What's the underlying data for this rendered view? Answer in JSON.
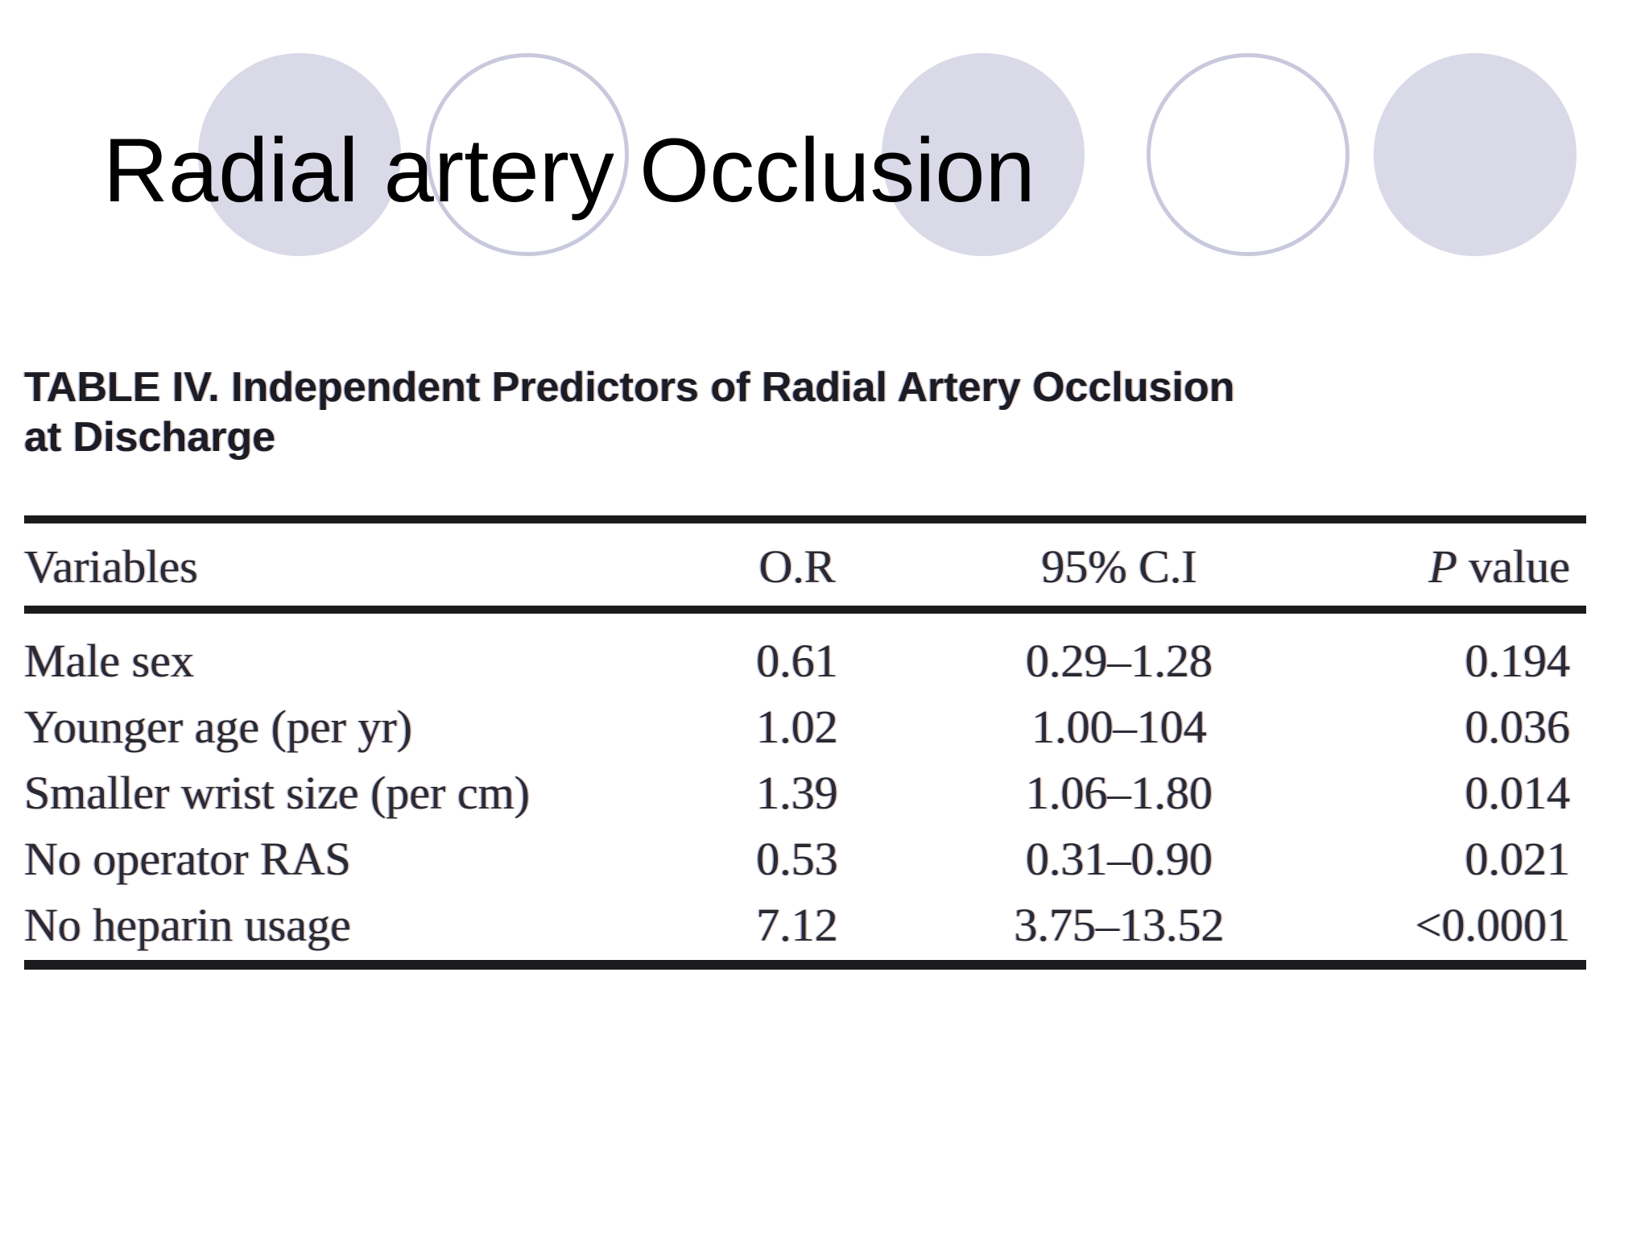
{
  "slide": {
    "title": "Radial artery Occlusion",
    "decor_circles": [
      "filled",
      "outlined",
      "filled",
      "outlined",
      "filled"
    ],
    "circle_lefts": [
      246,
      529,
      1095,
      1424,
      1706
    ],
    "colors": {
      "circle_fill": "#d9d9e8",
      "circle_stroke": "#c9c9dd",
      "ink": "#2a2a33",
      "ink_dark": "#1c1c24",
      "rule": "#1b1b1e"
    }
  },
  "table": {
    "caption_line1": "TABLE IV. Independent Predictors of Radial Artery Occlusion",
    "caption_line2": "at Discharge",
    "header": {
      "variables": "Variables",
      "or": "O.R",
      "ci": "95% C.I",
      "p_italic": "P",
      "p_rest": " value"
    },
    "rows": [
      {
        "variable": "Male sex",
        "or": "0.61",
        "ci": "0.29–1.28",
        "p": "0.194"
      },
      {
        "variable": "Younger age (per yr)",
        "or": "1.02",
        "ci": "1.00–104",
        "p": "0.036"
      },
      {
        "variable": "Smaller wrist size (per cm)",
        "or": "1.39",
        "ci": "1.06–1.80",
        "p": "0.014"
      },
      {
        "variable": "No operator RAS",
        "or": "0.53",
        "ci": "0.31–0.90",
        "p": "0.021"
      },
      {
        "variable": "No heparin usage",
        "or": "7.12",
        "ci": "3.75–13.52",
        "p": "<0.0001"
      }
    ]
  }
}
